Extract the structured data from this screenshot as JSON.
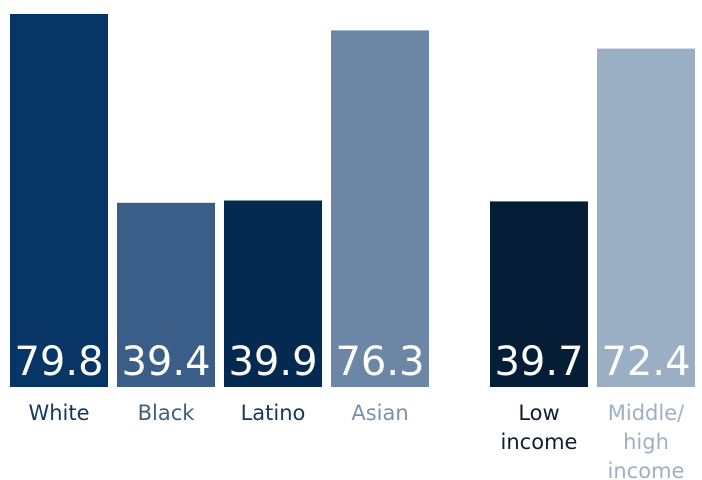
{
  "chart_data": {
    "type": "bar",
    "title": "",
    "xlabel": "",
    "ylabel": "",
    "ylim": [
      0,
      80
    ],
    "grid": false,
    "legend": "none",
    "categories": [
      [
        "White"
      ],
      [
        "Black"
      ],
      [
        "Latino"
      ],
      [
        "Asian"
      ],
      [
        "Low",
        "income"
      ],
      [
        "Middle/",
        "high",
        "income"
      ]
    ],
    "values": [
      79.8,
      39.4,
      39.9,
      76.3,
      39.7,
      72.4
    ],
    "value_labels": [
      "79.8",
      "39.4",
      "39.9",
      "76.3",
      "39.7",
      "72.4"
    ],
    "groups": [
      {
        "members": [
          0,
          1,
          2,
          3
        ]
      },
      {
        "members": [
          4,
          5
        ]
      }
    ],
    "colors": {
      "bars": [
        "#063566",
        "#3a5e87",
        "#042a52",
        "#6b87a5",
        "#051d36",
        "#9bafc4"
      ],
      "labels": [
        "#13395f",
        "#41607f",
        "#13395f",
        "#7a91ab",
        "#0d1e33",
        "#9fb0c2"
      ]
    }
  }
}
